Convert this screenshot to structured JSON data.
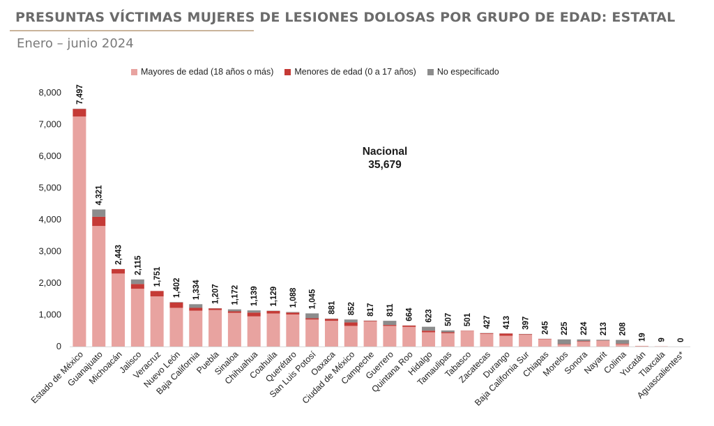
{
  "header": {
    "title": "PRESUNTAS VÍCTIMAS MUJERES DE LESIONES DOLOSAS POR GRUPO DE EDAD: ESTATAL",
    "subtitle": "Enero – junio 2024"
  },
  "national": {
    "label": "Nacional",
    "value": "35,679"
  },
  "colors": {
    "mayores": "#e8a3a0",
    "menores": "#c53a36",
    "no_especificado": "#8c8c8c"
  },
  "chart_data": {
    "type": "bar",
    "stacked": true,
    "ylim": [
      0,
      8000
    ],
    "yticks": [
      "0",
      "1,000",
      "2,000",
      "3,000",
      "4,000",
      "5,000",
      "6,000",
      "7,000",
      "8,000"
    ],
    "legend_position": "top",
    "grid": false,
    "categories": [
      "Estado de México",
      "Guanajuato",
      "Michoacán",
      "Jalisco",
      "Veracruz",
      "Nuevo León",
      "Baja California",
      "Puebla",
      "Sinaloa",
      "Chihuahua",
      "Coahuila",
      "Querétaro",
      "San Luis Potosí",
      "Oaxaca",
      "Ciudad de México",
      "Campeche",
      "Guerrero",
      "Quintana Roo",
      "Hidalgo",
      "Tamaulipas",
      "Tabasco",
      "Zacatecas",
      "Durango",
      "Baja California Sur",
      "Chiapas",
      "Morelos",
      "Sonora",
      "Nayarit",
      "Colima",
      "Yucatán",
      "Tlaxcala",
      "Aguascalientes*"
    ],
    "totals": [
      "7,497",
      "4,321",
      "2,443",
      "2,115",
      "1,751",
      "1,402",
      "1,334",
      "1,207",
      "1,172",
      "1,139",
      "1,129",
      "1,088",
      "1,045",
      "881",
      "852",
      "817",
      "811",
      "664",
      "623",
      "507",
      "501",
      "427",
      "413",
      "397",
      "245",
      "225",
      "224",
      "213",
      "208",
      "19",
      "9",
      "0"
    ],
    "series": [
      {
        "name": "Mayores de edad (18 años o más)",
        "values": [
          7250,
          3800,
          2300,
          1820,
          1580,
          1220,
          1130,
          1150,
          1060,
          950,
          1040,
          1010,
          850,
          810,
          650,
          790,
          650,
          620,
          450,
          420,
          490,
          400,
          340,
          370,
          230,
          60,
          150,
          180,
          70,
          15,
          9,
          0
        ]
      },
      {
        "name": "Menores de edad (0 a 17 años)",
        "values": [
          240,
          290,
          140,
          150,
          170,
          170,
          90,
          50,
          50,
          120,
          80,
          60,
          40,
          60,
          110,
          20,
          30,
          40,
          50,
          30,
          10,
          20,
          70,
          20,
          10,
          15,
          20,
          10,
          20,
          4,
          0,
          0
        ]
      },
      {
        "name": "No especificado",
        "values": [
          7,
          231,
          3,
          145,
          1,
          12,
          114,
          7,
          62,
          69,
          9,
          18,
          155,
          11,
          92,
          7,
          131,
          4,
          123,
          57,
          1,
          7,
          3,
          7,
          5,
          150,
          54,
          23,
          118,
          0,
          0,
          0
        ]
      }
    ]
  }
}
